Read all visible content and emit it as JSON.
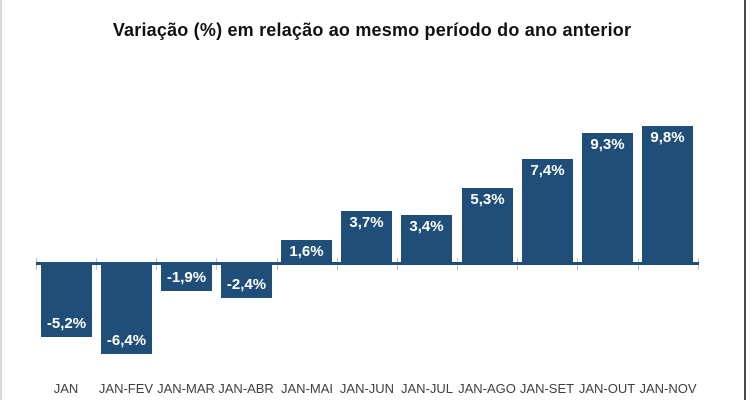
{
  "chart_data": {
    "type": "bar",
    "title": "Variação (%) em relação ao mesmo período do ano anterior",
    "categories": [
      "JAN",
      "JAN-FEV",
      "JAN-MAR",
      "JAN-ABR",
      "JAN-MAI",
      "JAN-JUN",
      "JAN-JUL",
      "JAN-AGO",
      "JAN-SET",
      "JAN-OUT",
      "JAN-NOV"
    ],
    "values": [
      -5.2,
      -6.4,
      -1.9,
      -2.4,
      1.6,
      3.7,
      3.4,
      5.3,
      7.4,
      9.3,
      9.8
    ],
    "data_labels": [
      "-5,2%",
      "-6,4%",
      "-1,9%",
      "-2,4%",
      "1,6%",
      "3,7%",
      "3,4%",
      "5,3%",
      "7,4%",
      "9,3%",
      "9,8%"
    ],
    "xlabel": "",
    "ylabel": "",
    "ylim": [
      -7.5,
      10.5
    ],
    "grid": false,
    "legend": "none",
    "label_position": "inside-end",
    "colors": {
      "bar": "#1F4E79",
      "axis_line": "#1F4E79",
      "tick": "#BFBFBF",
      "data_label": "#FFFFFF",
      "category_label": "#3F3F3F",
      "title": "#111111",
      "background": "#FFFFFF"
    }
  }
}
